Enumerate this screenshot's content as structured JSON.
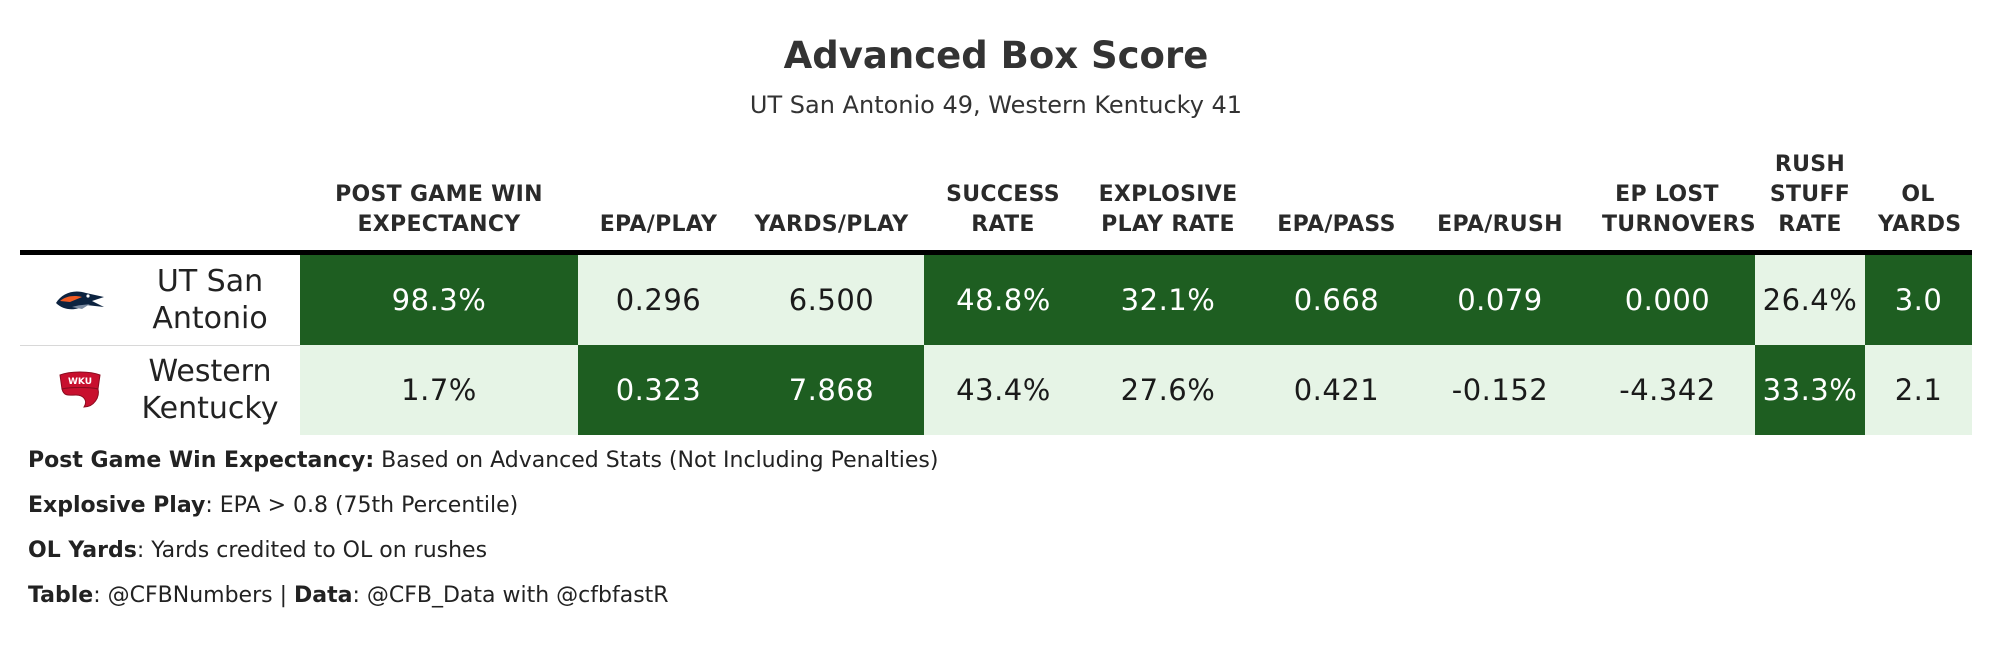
{
  "title": "Advanced Box Score",
  "subtitle": "UT San Antonio 49, Western Kentucky 41",
  "colors": {
    "dark": "#1e5e21",
    "light": "#e6f4e6",
    "dark_text": "#ffffff",
    "light_text": "#1a1a1a"
  },
  "columns": [
    {
      "key": "wp",
      "label": "POST GAME WIN EXPECTANCY"
    },
    {
      "key": "epa_play",
      "label": "EPA/PLAY"
    },
    {
      "key": "yards_play",
      "label": "YARDS/PLAY"
    },
    {
      "key": "success",
      "label": "SUCCESS RATE"
    },
    {
      "key": "explosive",
      "label": "EXPLOSIVE PLAY RATE"
    },
    {
      "key": "epa_pass",
      "label": "EPA/PASS"
    },
    {
      "key": "epa_rush",
      "label": "EPA/RUSH"
    },
    {
      "key": "ep_lost",
      "label": "EP LOST TURNOVERS"
    },
    {
      "key": "stuff",
      "label": "RUSH STUFF RATE"
    },
    {
      "key": "ol_yards",
      "label": "OL YARDS"
    }
  ],
  "chart_data": {
    "type": "table",
    "title": "Advanced Box Score",
    "subtitle": "UT San Antonio 49, Western Kentucky 41",
    "rows": [
      {
        "team": "UT San Antonio",
        "logo_icon": "utsa-roadrunner-logo",
        "values": [
          "98.3%",
          "0.296",
          "6.500",
          "48.8%",
          "32.1%",
          "0.668",
          "0.079",
          "0.000",
          "26.4%",
          "3.0"
        ],
        "better": [
          true,
          false,
          false,
          true,
          true,
          true,
          true,
          true,
          false,
          true
        ]
      },
      {
        "team": "Western Kentucky",
        "logo_icon": "wku-towel-logo",
        "values": [
          "1.7%",
          "0.323",
          "7.868",
          "43.4%",
          "27.6%",
          "0.421",
          "-0.152",
          "-4.342",
          "33.3%",
          "2.1"
        ],
        "better": [
          false,
          true,
          true,
          false,
          false,
          false,
          false,
          false,
          true,
          false
        ]
      }
    ]
  },
  "notes": [
    {
      "bold": "Post Game Win Expectancy:",
      "text": " Based on Advanced Stats (Not Including Penalties)"
    },
    {
      "bold": "Explosive Play",
      "text": ": EPA > 0.8 (75th Percentile)"
    },
    {
      "bold": "OL Yards",
      "text": ": Yards credited to OL on rushes"
    },
    {
      "bold": "Table",
      "text": ": @CFBNumbers | ",
      "bold2": "Data",
      "text2": ": @CFB_Data with @cfbfastR"
    }
  ]
}
